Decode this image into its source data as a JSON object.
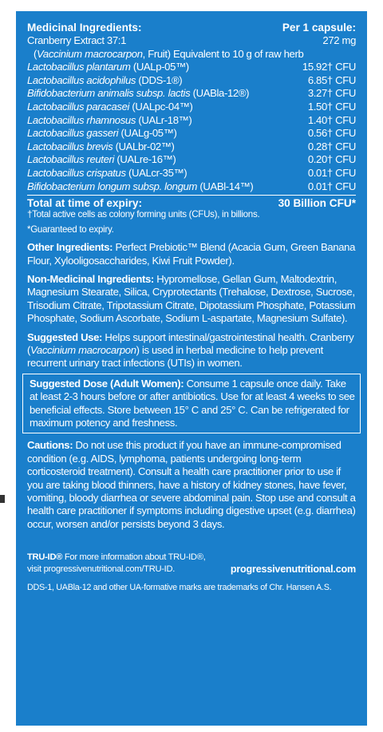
{
  "medicinal": {
    "header_left": "Medicinal Ingredients:",
    "header_right": "Per 1 capsule:",
    "cranberry_name": "Cranberry Extract 37:1",
    "cranberry_value": "272 mg",
    "cranberry_latin": "Vaccinium macrocarpon",
    "cranberry_note": ", Fruit) Equivalent to 10 g of raw herb",
    "strains": [
      {
        "name": "Lactobacillus plantarum",
        "code": "(UALp-05™)",
        "value": "15.92† CFU"
      },
      {
        "name": "Lactobacillus acidophilus",
        "code": "(DDS-1®)",
        "value": "6.85† CFU"
      },
      {
        "name": "Bifidobacterium animalis subsp. lactis",
        "code": "(UABla-12®)",
        "value": "3.27† CFU"
      },
      {
        "name": "Lactobacillus paracasei",
        "code": "(UALpc-04™)",
        "value": "1.50† CFU"
      },
      {
        "name": "Lactobacillus rhamnosus",
        "code": "(UALr-18™)",
        "value": "1.40† CFU"
      },
      {
        "name": "Lactobacillus gasseri",
        "code": "(UALg-05™)",
        "value": "0.56† CFU"
      },
      {
        "name": "Lactobacillus brevis",
        "code": "(UALbr-02™)",
        "value": "0.28† CFU"
      },
      {
        "name": "Lactobacillus reuteri",
        "code": "(UALre-16™)",
        "value": "0.20† CFU"
      },
      {
        "name": "Lactobacillus crispatus",
        "code": "(UALcr-35™)",
        "value": "0.01† CFU"
      },
      {
        "name": "Bifidobacterium longum subsp. longum",
        "code": "(UABl-14™)",
        "value": "0.01† CFU"
      }
    ],
    "total_label": "Total at time of expiry:",
    "total_value": "30 Billion CFU*",
    "note_dagger": "†Total active cells as colony forming units (CFUs), in billions.",
    "note_star": "*Guaranteed to expiry."
  },
  "other": {
    "label": "Other Ingredients:",
    "text": " Perfect Prebiotic™ Blend (Acacia Gum, Green Banana Flour, Xylooligosaccharides, Kiwi Fruit Powder)."
  },
  "nonmed": {
    "label": "Non-Medicinal Ingredients:",
    "text": " Hypromellose, Gellan Gum, Maltodextrin, Magnesium Stearate, Silica, Cryprotectants (Trehalose, Dextrose, Sucrose, Trisodium Citrate, Tripotassium Citrate, Dipotassium Phosphate, Potassium Phosphate, Sodium Ascorbate, Sodium L-aspartate, Magnesium Sulfate)."
  },
  "use": {
    "label": "Suggested Use:",
    "text1": " Helps support intestinal/gastrointestinal health. Cranberry (",
    "latin": "Vaccinium macrocarpon",
    "text2": ") is used in herbal medicine to help prevent recurrent urinary tract infections (UTIs) in women."
  },
  "dose": {
    "label": "Suggested Dose (Adult Women):",
    "text": " Consume 1 capsule once daily. Take at least 2-3 hours before or after antibiotics. Use for at least 4 weeks to see beneficial effects. Store between 15° C and 25° C. Can be refrigerated for maximum potency and freshness."
  },
  "cautions": {
    "label": "Cautions:",
    "text": " Do not use this product if you have an immune-compromised condition (e.g. AIDS, lymphoma, patients undergoing long-term corticosteroid treatment). Consult a health care practitioner prior to use if you are taking blood thinners, have a history of kidney stones, have fever, vomiting, bloody diarrhea or severe abdominal pain. Stop use and consult a health care practitioner if symptoms including digestive upset (e.g. diarrhea) occur, worsen and/or persists beyond 3 days."
  },
  "footer": {
    "truid_label": "TRU-ID®",
    "truid_text": " For more information about TRU-ID®,",
    "truid_url": "visit progressivenutritional.com/TRU-ID.",
    "site": "progressivenutritional.com",
    "trademark": "DDS-1, UABla-12 and other UA-formative marks are trademarks of Chr. Hansen A.S."
  }
}
